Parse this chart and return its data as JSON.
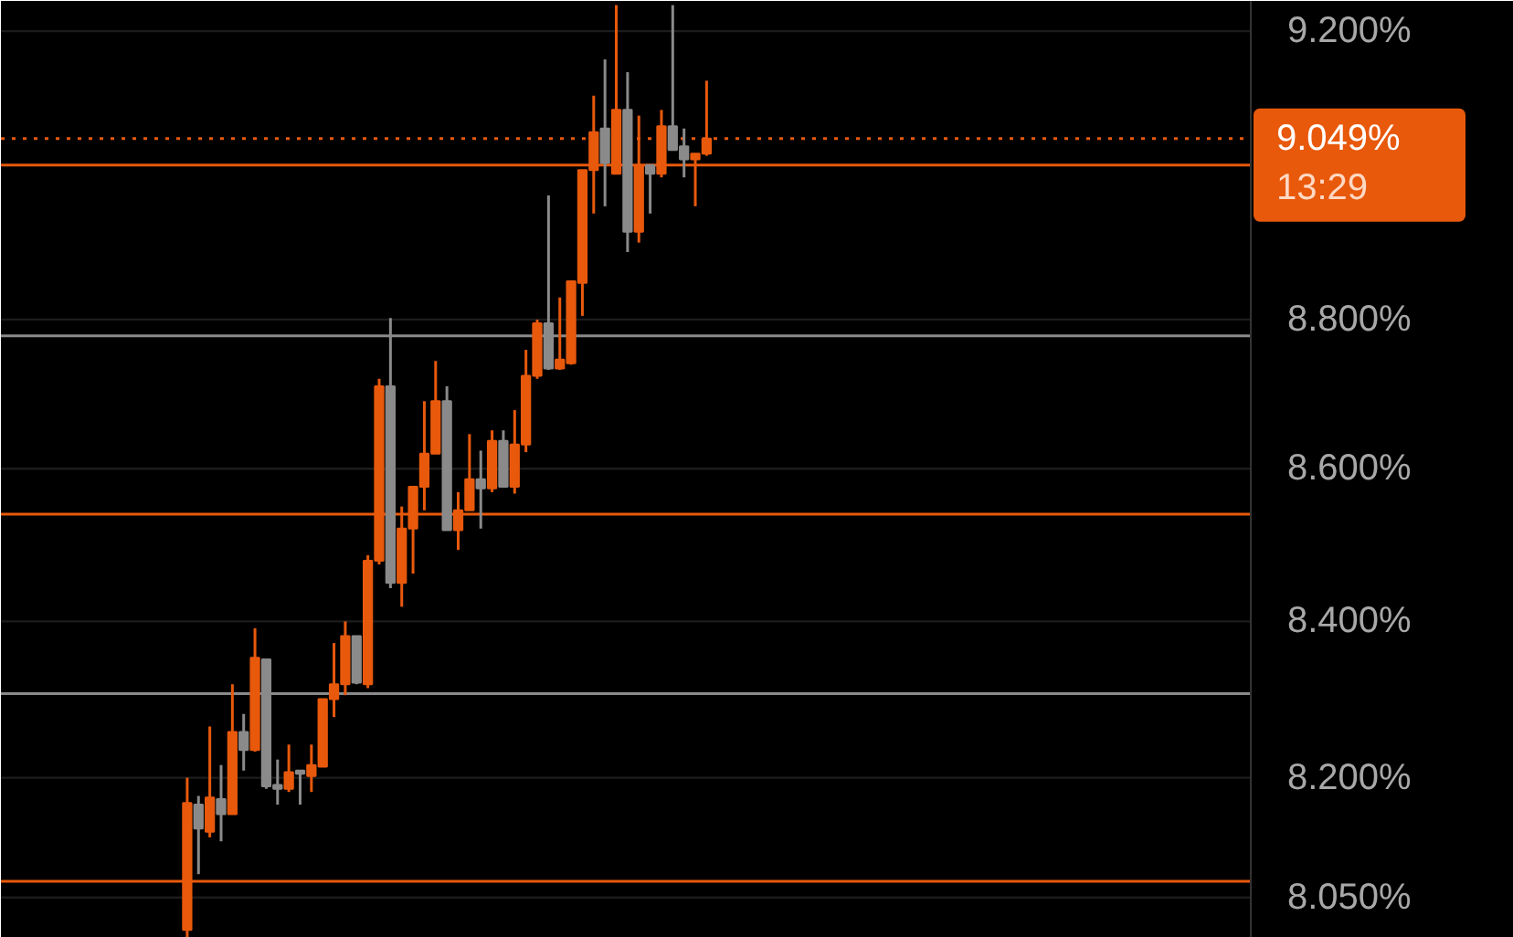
{
  "chart_data": {
    "type": "candlestick",
    "categories": [
      null,
      null,
      null,
      null,
      null,
      null,
      null,
      null,
      null,
      null,
      null,
      null,
      null,
      null,
      null,
      null,
      null,
      null,
      null,
      null,
      null,
      null,
      null,
      null,
      null,
      null,
      null,
      null,
      null,
      null,
      null,
      null,
      null,
      null,
      null,
      null,
      null,
      null,
      null,
      null,
      null,
      null,
      null,
      null,
      null,
      null,
      null,
      null,
      null,
      null,
      null,
      null,
      null,
      null,
      null,
      null,
      null,
      null,
      null,
      null,
      null,
      null,
      null,
      null,
      null,
      null,
      null,
      null,
      null,
      null,
      null,
      null,
      null,
      null,
      null,
      null,
      null,
      null,
      null,
      null,
      null,
      null,
      null,
      null,
      null,
      null,
      null,
      null,
      null,
      null,
      null,
      null,
      null,
      null,
      null,
      null,
      null,
      null,
      null,
      null,
      null,
      null,
      null,
      null,
      null,
      null,
      null,
      null,
      null,
      null,
      null,
      null,
      null,
      null,
      null,
      null,
      null,
      null,
      null,
      null,
      null,
      null,
      null,
      null,
      null,
      null,
      null,
      null,
      null,
      null,
      null,
      null,
      null,
      null
    ],
    "ohlc": [
      null,
      null,
      null,
      null,
      null,
      null,
      null,
      null,
      null,
      null,
      null,
      null,
      null,
      null,
      null,
      null,
      [
        8.01,
        8.2,
        8.0,
        8.168
      ],
      [
        8.166,
        8.177,
        8.079,
        8.136
      ],
      [
        8.132,
        8.265,
        8.125,
        8.175
      ],
      [
        8.173,
        8.216,
        8.12,
        8.154
      ],
      [
        8.154,
        8.319,
        8.154,
        8.258
      ],
      [
        8.258,
        8.281,
        8.209,
        8.235
      ],
      [
        8.235,
        8.391,
        8.233,
        8.353
      ],
      [
        8.351,
        8.351,
        8.186,
        8.189
      ],
      [
        8.191,
        8.223,
        8.166,
        8.186
      ],
      [
        8.186,
        8.242,
        8.182,
        8.207
      ],
      [
        8.209,
        8.209,
        8.166,
        8.205
      ],
      [
        8.202,
        8.242,
        8.182,
        8.216
      ],
      [
        8.214,
        8.3,
        8.214,
        8.3
      ],
      [
        8.3,
        8.372,
        8.277,
        8.319
      ],
      [
        8.319,
        8.4,
        8.305,
        8.381
      ],
      [
        8.381,
        8.381,
        8.319,
        8.321
      ],
      [
        8.319,
        8.486,
        8.314,
        8.479
      ],
      [
        8.479,
        8.72,
        8.474,
        8.71
      ],
      [
        8.71,
        8.802,
        8.443,
        8.45
      ],
      [
        8.45,
        8.55,
        8.419,
        8.521
      ],
      [
        8.521,
        8.576,
        8.462,
        8.576
      ],
      [
        8.576,
        8.69,
        8.545,
        8.62
      ],
      [
        8.62,
        8.744,
        8.62,
        8.69
      ],
      [
        8.69,
        8.71,
        8.519,
        8.519
      ],
      [
        8.519,
        8.569,
        8.493,
        8.545
      ],
      [
        8.545,
        8.646,
        8.545,
        8.586
      ],
      [
        8.586,
        8.624,
        8.521,
        8.574
      ],
      [
        8.574,
        8.651,
        8.569,
        8.637
      ],
      [
        8.637,
        8.651,
        8.576,
        8.576
      ],
      [
        8.576,
        8.678,
        8.567,
        8.632
      ],
      [
        8.632,
        8.759,
        8.622,
        8.724
      ],
      [
        8.724,
        8.8,
        8.72,
        8.795
      ],
      [
        8.795,
        8.97,
        8.732,
        8.734
      ],
      [
        8.734,
        8.83,
        8.732,
        8.746
      ],
      [
        8.741,
        8.852,
        8.739,
        8.852
      ],
      [
        8.85,
        9.005,
        8.805,
        9.005
      ],
      [
        9.005,
        9.109,
        8.945,
        9.058
      ],
      [
        9.063,
        9.16,
        8.955,
        9.015
      ],
      [
        9.0,
        9.237,
        9.0,
        9.089
      ],
      [
        9.089,
        9.142,
        8.892,
        8.92
      ],
      [
        8.92,
        9.081,
        8.905,
        9.012
      ],
      [
        9.012,
        9.012,
        8.945,
        9.0
      ],
      [
        9.0,
        9.089,
        8.995,
        9.066
      ],
      [
        9.066,
        9.237,
        9.033,
        9.033
      ],
      [
        9.038,
        9.063,
        8.995,
        9.02
      ],
      [
        9.02,
        9.028,
        8.955,
        9.028
      ],
      [
        9.028,
        9.13,
        9.025,
        9.049
      ],
      null,
      null,
      null,
      null,
      null,
      null,
      null,
      null,
      null,
      null,
      null,
      null,
      null,
      null,
      null,
      null,
      null,
      null,
      null,
      null,
      null,
      null,
      null,
      null,
      null,
      null,
      null,
      null,
      null,
      null,
      null,
      null,
      null,
      null,
      null,
      null,
      null,
      null,
      null,
      null,
      null,
      null,
      null,
      null,
      null,
      null,
      null,
      null,
      null,
      null,
      null,
      null,
      null,
      null,
      null,
      null,
      null,
      null,
      null,
      null,
      null,
      null,
      null,
      null,
      null,
      null,
      null,
      null,
      null,
      null,
      null
    ],
    "colors": [
      null,
      null,
      null,
      null,
      null,
      null,
      null,
      null,
      null,
      null,
      null,
      null,
      null,
      null,
      null,
      null,
      "#e8590c",
      "#8a8a8a",
      "#e8590c",
      "#8a8a8a",
      "#e8590c",
      "#8a8a8a",
      "#e8590c",
      "#8a8a8a",
      "#8a8a8a",
      "#e8590c",
      "#8a8a8a",
      "#e8590c",
      "#e8590c",
      "#e8590c",
      "#e8590c",
      "#8a8a8a",
      "#e8590c",
      "#e8590c",
      "#8a8a8a",
      "#e8590c",
      "#e8590c",
      "#e8590c",
      "#e8590c",
      "#8a8a8a",
      "#e8590c",
      "#e8590c",
      "#8a8a8a",
      "#e8590c",
      "#8a8a8a",
      "#e8590c",
      "#e8590c",
      "#e8590c",
      "#8a8a8a",
      "#e8590c",
      "#e8590c",
      "#e8590c",
      "#e8590c",
      "#8a8a8a",
      "#e8590c",
      "#8a8a8a",
      "#e8590c",
      "#8a8a8a",
      "#e8590c",
      "#8a8a8a",
      "#8a8a8a",
      "#e8590c",
      "#e8590c",
      null,
      null,
      null,
      null,
      null,
      null,
      null,
      null,
      null,
      null,
      null,
      null,
      null,
      null,
      null,
      null,
      null,
      null,
      null,
      null,
      null,
      null,
      null,
      null,
      null,
      null,
      null,
      null,
      null,
      null,
      null,
      null,
      null,
      null,
      null,
      null,
      null,
      null,
      null,
      null,
      null,
      null,
      null,
      null,
      null,
      null,
      null,
      null,
      null,
      null,
      null,
      null,
      null,
      null,
      null,
      null,
      null,
      null,
      null,
      null,
      null,
      null,
      null,
      null,
      null,
      null,
      null,
      null,
      null,
      null,
      null
    ],
    "log": true,
    "ylim": [
      8.0,
      9.243
    ],
    "yticks": [
      {
        "value": 8.05,
        "label": "8.050%"
      },
      {
        "value": 8.2,
        "label": "8.200%"
      },
      {
        "value": 8.4,
        "label": "8.400%"
      },
      {
        "value": 8.6,
        "label": "8.600%"
      },
      {
        "value": 8.8,
        "label": "8.800%"
      },
      {
        "value": 9.2,
        "label": "9.200%"
      }
    ],
    "grid": "y",
    "tick_labels": "y",
    "ref_lines": [
      {
        "axis": "y",
        "value": 9.012,
        "color": "#e8590c",
        "line_style": "solid"
      },
      {
        "axis": "y",
        "value": 8.778,
        "color": "#8a8a8a",
        "line_style": "solid"
      },
      {
        "axis": "y",
        "value": 8.54,
        "color": "#e8590c",
        "line_style": "solid"
      },
      {
        "axis": "y",
        "value": 8.307,
        "color": "#8a8a8a",
        "line_style": "solid"
      },
      {
        "axis": "y",
        "value": 8.07,
        "color": "#e8590c",
        "line_style": "solid"
      },
      {
        "axis": "y",
        "value": 9.049,
        "color": "#e8590c",
        "line_style": "dotted",
        "label": "9.049%"
      }
    ],
    "annotations": [
      "13:29"
    ]
  }
}
